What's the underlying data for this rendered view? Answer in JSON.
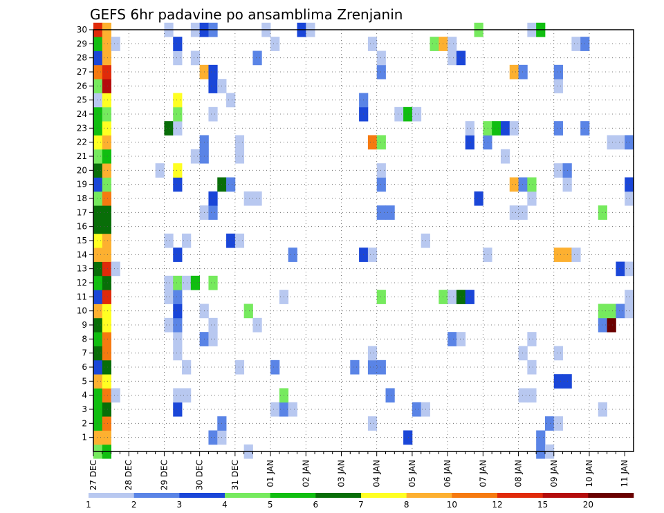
{
  "chart_data": {
    "type": "heatmap",
    "title": "GEFS 6hr padavine po ansamblima Zrenjanin",
    "xlabel": "",
    "ylabel": "",
    "x_tick_labels": [
      "27 DEC",
      "28 DEC",
      "29 DEC",
      "30 DEC",
      "31 DEC",
      "01 JAN",
      "02 JAN",
      "03 JAN",
      "04 JAN",
      "05 JAN",
      "06 JAN",
      "07 JAN",
      "08 JAN",
      "09 JAN",
      "10 JAN",
      "11 JAN"
    ],
    "y_tick_labels": [
      "1",
      "2",
      "3",
      "4",
      "5",
      "6",
      "7",
      "8",
      "9",
      "10",
      "11",
      "12",
      "13",
      "14",
      "15",
      "16",
      "17",
      "18",
      "19",
      "20",
      "21",
      "22",
      "23",
      "24",
      "25",
      "26",
      "27",
      "28",
      "29",
      "30"
    ],
    "steps_per_day": 4,
    "n_steps": 61,
    "ylim": [
      0,
      30
    ],
    "grid": true,
    "legend": {
      "placement": "bottom",
      "labels": [
        "1",
        "2",
        "3",
        "4",
        "5",
        "6",
        "7",
        "8",
        "10",
        "12",
        "15",
        "20"
      ],
      "colors": [
        "#b8c8f0",
        "#5a84e6",
        "#1a46d8",
        "#76ea5e",
        "#10be10",
        "#086e08",
        "#ffff22",
        "#fdb030",
        "#f67a10",
        "#e02a0a",
        "#b40c0c",
        "#6a0000"
      ]
    },
    "cells": [
      [
        0,
        0,
        "#76ea5e"
      ],
      [
        1,
        0,
        "#10be10"
      ],
      [
        17,
        0,
        "#b8c8f0"
      ],
      [
        50,
        0,
        "#5a84e6"
      ],
      [
        51,
        0,
        "#b8c8f0"
      ],
      [
        0,
        1,
        "#fdb030"
      ],
      [
        1,
        1,
        "#fdb030"
      ],
      [
        13,
        1,
        "#5a84e6"
      ],
      [
        14,
        1,
        "#b8c8f0"
      ],
      [
        35,
        1,
        "#1a46d8"
      ],
      [
        50,
        1,
        "#5a84e6"
      ],
      [
        0,
        2,
        "#10be10"
      ],
      [
        1,
        2,
        "#f67a10"
      ],
      [
        14,
        2,
        "#5a84e6"
      ],
      [
        31,
        2,
        "#b8c8f0"
      ],
      [
        51,
        2,
        "#5a84e6"
      ],
      [
        52,
        2,
        "#b8c8f0"
      ],
      [
        0,
        3,
        "#10be10"
      ],
      [
        1,
        3,
        "#086e08"
      ],
      [
        9,
        3,
        "#1a46d8"
      ],
      [
        20,
        3,
        "#b8c8f0"
      ],
      [
        21,
        3,
        "#5a84e6"
      ],
      [
        22,
        3,
        "#b8c8f0"
      ],
      [
        36,
        3,
        "#5a84e6"
      ],
      [
        37,
        3,
        "#b8c8f0"
      ],
      [
        57,
        3,
        "#b8c8f0"
      ],
      [
        0,
        4,
        "#10be10"
      ],
      [
        1,
        4,
        "#f67a10"
      ],
      [
        2,
        4,
        "#b8c8f0"
      ],
      [
        9,
        4,
        "#b8c8f0"
      ],
      [
        10,
        4,
        "#b8c8f0"
      ],
      [
        21,
        4,
        "#76ea5e"
      ],
      [
        33,
        4,
        "#5a84e6"
      ],
      [
        48,
        4,
        "#b8c8f0"
      ],
      [
        49,
        4,
        "#b8c8f0"
      ],
      [
        0,
        5,
        "#fdb030"
      ],
      [
        1,
        5,
        "#ffff22"
      ],
      [
        52,
        5,
        "#1a46d8"
      ],
      [
        53,
        5,
        "#1a46d8"
      ],
      [
        0,
        6,
        "#1a46d8"
      ],
      [
        1,
        6,
        "#086e08"
      ],
      [
        10,
        6,
        "#b8c8f0"
      ],
      [
        16,
        6,
        "#b8c8f0"
      ],
      [
        20,
        6,
        "#5a84e6"
      ],
      [
        29,
        6,
        "#5a84e6"
      ],
      [
        31,
        6,
        "#5a84e6"
      ],
      [
        32,
        6,
        "#5a84e6"
      ],
      [
        49,
        6,
        "#b8c8f0"
      ],
      [
        0,
        7,
        "#086e08"
      ],
      [
        1,
        7,
        "#f67a10"
      ],
      [
        9,
        7,
        "#b8c8f0"
      ],
      [
        31,
        7,
        "#b8c8f0"
      ],
      [
        48,
        7,
        "#b8c8f0"
      ],
      [
        52,
        7,
        "#b8c8f0"
      ],
      [
        0,
        8,
        "#10be10"
      ],
      [
        1,
        8,
        "#f67a10"
      ],
      [
        9,
        8,
        "#b8c8f0"
      ],
      [
        12,
        8,
        "#5a84e6"
      ],
      [
        13,
        8,
        "#b8c8f0"
      ],
      [
        40,
        8,
        "#5a84e6"
      ],
      [
        41,
        8,
        "#b8c8f0"
      ],
      [
        49,
        8,
        "#b8c8f0"
      ],
      [
        0,
        9,
        "#086e08"
      ],
      [
        1,
        9,
        "#ffff22"
      ],
      [
        8,
        9,
        "#b8c8f0"
      ],
      [
        9,
        9,
        "#5a84e6"
      ],
      [
        13,
        9,
        "#b8c8f0"
      ],
      [
        18,
        9,
        "#b8c8f0"
      ],
      [
        57,
        9,
        "#5a84e6"
      ],
      [
        58,
        9,
        "#6a0000"
      ],
      [
        0,
        10,
        "#fdb030"
      ],
      [
        1,
        10,
        "#ffff22"
      ],
      [
        9,
        10,
        "#1a46d8"
      ],
      [
        12,
        10,
        "#b8c8f0"
      ],
      [
        17,
        10,
        "#76ea5e"
      ],
      [
        57,
        10,
        "#76ea5e"
      ],
      [
        58,
        10,
        "#76ea5e"
      ],
      [
        59,
        10,
        "#5a84e6"
      ],
      [
        60,
        10,
        "#b8c8f0"
      ],
      [
        0,
        11,
        "#1a46d8"
      ],
      [
        1,
        11,
        "#e02a0a"
      ],
      [
        8,
        11,
        "#b8c8f0"
      ],
      [
        9,
        11,
        "#5a84e6"
      ],
      [
        21,
        11,
        "#b8c8f0"
      ],
      [
        32,
        11,
        "#76ea5e"
      ],
      [
        39,
        11,
        "#76ea5e"
      ],
      [
        40,
        11,
        "#b8c8f0"
      ],
      [
        41,
        11,
        "#086e08"
      ],
      [
        42,
        11,
        "#1a46d8"
      ],
      [
        60,
        11,
        "#b8c8f0"
      ],
      [
        0,
        12,
        "#10be10"
      ],
      [
        1,
        12,
        "#086e08"
      ],
      [
        8,
        12,
        "#b8c8f0"
      ],
      [
        9,
        12,
        "#76ea5e"
      ],
      [
        10,
        12,
        "#b8c8f0"
      ],
      [
        11,
        12,
        "#10be10"
      ],
      [
        13,
        12,
        "#76ea5e"
      ],
      [
        0,
        13,
        "#086e08"
      ],
      [
        1,
        13,
        "#e02a0a"
      ],
      [
        2,
        13,
        "#b8c8f0"
      ],
      [
        59,
        13,
        "#1a46d8"
      ],
      [
        60,
        13,
        "#b8c8f0"
      ],
      [
        0,
        14,
        "#fdb030"
      ],
      [
        1,
        14,
        "#fdb030"
      ],
      [
        9,
        14,
        "#1a46d8"
      ],
      [
        22,
        14,
        "#5a84e6"
      ],
      [
        30,
        14,
        "#1a46d8"
      ],
      [
        31,
        14,
        "#b8c8f0"
      ],
      [
        44,
        14,
        "#b8c8f0"
      ],
      [
        52,
        14,
        "#fdb030"
      ],
      [
        53,
        14,
        "#fdb030"
      ],
      [
        54,
        14,
        "#b8c8f0"
      ],
      [
        0,
        15,
        "#ffff22"
      ],
      [
        1,
        15,
        "#fdb030"
      ],
      [
        8,
        15,
        "#b8c8f0"
      ],
      [
        10,
        15,
        "#b8c8f0"
      ],
      [
        15,
        15,
        "#1a46d8"
      ],
      [
        16,
        15,
        "#b8c8f0"
      ],
      [
        37,
        15,
        "#b8c8f0"
      ],
      [
        0,
        16,
        "#086e08"
      ],
      [
        1,
        16,
        "#086e08"
      ],
      [
        0,
        17,
        "#086e08"
      ],
      [
        1,
        17,
        "#086e08"
      ],
      [
        12,
        17,
        "#b8c8f0"
      ],
      [
        13,
        17,
        "#5a84e6"
      ],
      [
        32,
        17,
        "#5a84e6"
      ],
      [
        33,
        17,
        "#5a84e6"
      ],
      [
        47,
        17,
        "#b8c8f0"
      ],
      [
        48,
        17,
        "#b8c8f0"
      ],
      [
        57,
        17,
        "#76ea5e"
      ],
      [
        0,
        18,
        "#76ea5e"
      ],
      [
        1,
        18,
        "#f67a10"
      ],
      [
        13,
        18,
        "#1a46d8"
      ],
      [
        17,
        18,
        "#b8c8f0"
      ],
      [
        18,
        18,
        "#b8c8f0"
      ],
      [
        43,
        18,
        "#1a46d8"
      ],
      [
        49,
        18,
        "#b8c8f0"
      ],
      [
        60,
        18,
        "#b8c8f0"
      ],
      [
        0,
        19,
        "#1a46d8"
      ],
      [
        1,
        19,
        "#76ea5e"
      ],
      [
        9,
        19,
        "#1a46d8"
      ],
      [
        14,
        19,
        "#086e08"
      ],
      [
        15,
        19,
        "#5a84e6"
      ],
      [
        32,
        19,
        "#5a84e6"
      ],
      [
        47,
        19,
        "#fdb030"
      ],
      [
        48,
        19,
        "#5a84e6"
      ],
      [
        49,
        19,
        "#76ea5e"
      ],
      [
        53,
        19,
        "#b8c8f0"
      ],
      [
        60,
        19,
        "#1a46d8"
      ],
      [
        0,
        20,
        "#086e08"
      ],
      [
        1,
        20,
        "#fdb030"
      ],
      [
        7,
        20,
        "#b8c8f0"
      ],
      [
        9,
        20,
        "#ffff22"
      ],
      [
        32,
        20,
        "#b8c8f0"
      ],
      [
        52,
        20,
        "#b8c8f0"
      ],
      [
        53,
        20,
        "#5a84e6"
      ],
      [
        0,
        21,
        "#76ea5e"
      ],
      [
        1,
        21,
        "#10be10"
      ],
      [
        11,
        21,
        "#b8c8f0"
      ],
      [
        12,
        21,
        "#5a84e6"
      ],
      [
        16,
        21,
        "#b8c8f0"
      ],
      [
        46,
        21,
        "#b8c8f0"
      ],
      [
        0,
        22,
        "#ffff22"
      ],
      [
        1,
        22,
        "#fdb030"
      ],
      [
        12,
        22,
        "#5a84e6"
      ],
      [
        16,
        22,
        "#b8c8f0"
      ],
      [
        31,
        22,
        "#f67a10"
      ],
      [
        32,
        22,
        "#76ea5e"
      ],
      [
        42,
        22,
        "#1a46d8"
      ],
      [
        44,
        22,
        "#5a84e6"
      ],
      [
        58,
        22,
        "#b8c8f0"
      ],
      [
        59,
        22,
        "#b8c8f0"
      ],
      [
        60,
        22,
        "#5a84e6"
      ],
      [
        0,
        23,
        "#10be10"
      ],
      [
        1,
        23,
        "#ffff22"
      ],
      [
        8,
        23,
        "#086e08"
      ],
      [
        9,
        23,
        "#b8c8f0"
      ],
      [
        42,
        23,
        "#b8c8f0"
      ],
      [
        44,
        23,
        "#76ea5e"
      ],
      [
        45,
        23,
        "#10be10"
      ],
      [
        46,
        23,
        "#1a46d8"
      ],
      [
        47,
        23,
        "#b8c8f0"
      ],
      [
        52,
        23,
        "#5a84e6"
      ],
      [
        55,
        23,
        "#5a84e6"
      ],
      [
        0,
        24,
        "#10be10"
      ],
      [
        1,
        24,
        "#76ea5e"
      ],
      [
        9,
        24,
        "#76ea5e"
      ],
      [
        13,
        24,
        "#b8c8f0"
      ],
      [
        30,
        24,
        "#1a46d8"
      ],
      [
        34,
        24,
        "#b8c8f0"
      ],
      [
        35,
        24,
        "#10be10"
      ],
      [
        36,
        24,
        "#b8c8f0"
      ],
      [
        0,
        25,
        "#b8c8f0"
      ],
      [
        1,
        25,
        "#ffff22"
      ],
      [
        9,
        25,
        "#ffff22"
      ],
      [
        15,
        25,
        "#b8c8f0"
      ],
      [
        30,
        25,
        "#5a84e6"
      ],
      [
        0,
        26,
        "#76ea5e"
      ],
      [
        1,
        26,
        "#b40c0c"
      ],
      [
        13,
        26,
        "#1a46d8"
      ],
      [
        14,
        26,
        "#b8c8f0"
      ],
      [
        52,
        26,
        "#b8c8f0"
      ],
      [
        0,
        27,
        "#f67a10"
      ],
      [
        1,
        27,
        "#e02a0a"
      ],
      [
        12,
        27,
        "#fdb030"
      ],
      [
        13,
        27,
        "#1a46d8"
      ],
      [
        32,
        27,
        "#5a84e6"
      ],
      [
        47,
        27,
        "#fdb030"
      ],
      [
        48,
        27,
        "#5a84e6"
      ],
      [
        52,
        27,
        "#5a84e6"
      ],
      [
        0,
        28,
        "#1a46d8"
      ],
      [
        1,
        28,
        "#fdb030"
      ],
      [
        9,
        28,
        "#b8c8f0"
      ],
      [
        11,
        28,
        "#b8c8f0"
      ],
      [
        18,
        28,
        "#5a84e6"
      ],
      [
        32,
        28,
        "#b8c8f0"
      ],
      [
        40,
        28,
        "#b8c8f0"
      ],
      [
        41,
        28,
        "#1a46d8"
      ],
      [
        0,
        29,
        "#10be10"
      ],
      [
        1,
        29,
        "#fdb030"
      ],
      [
        2,
        29,
        "#b8c8f0"
      ],
      [
        9,
        29,
        "#1a46d8"
      ],
      [
        20,
        29,
        "#b8c8f0"
      ],
      [
        31,
        29,
        "#b8c8f0"
      ],
      [
        38,
        29,
        "#76ea5e"
      ],
      [
        39,
        29,
        "#fdb030"
      ],
      [
        40,
        29,
        "#b8c8f0"
      ],
      [
        54,
        29,
        "#b8c8f0"
      ],
      [
        55,
        29,
        "#5a84e6"
      ],
      [
        0,
        30,
        "#e02a0a"
      ],
      [
        1,
        30,
        "#fdb030"
      ],
      [
        8,
        30,
        "#b8c8f0"
      ],
      [
        11,
        30,
        "#b8c8f0"
      ],
      [
        12,
        30,
        "#1a46d8"
      ],
      [
        13,
        30,
        "#5a84e6"
      ],
      [
        19,
        30,
        "#b8c8f0"
      ],
      [
        23,
        30,
        "#1a46d8"
      ],
      [
        24,
        30,
        "#b8c8f0"
      ],
      [
        43,
        30,
        "#76ea5e"
      ],
      [
        49,
        30,
        "#b8c8f0"
      ],
      [
        50,
        30,
        "#10be10"
      ]
    ]
  }
}
